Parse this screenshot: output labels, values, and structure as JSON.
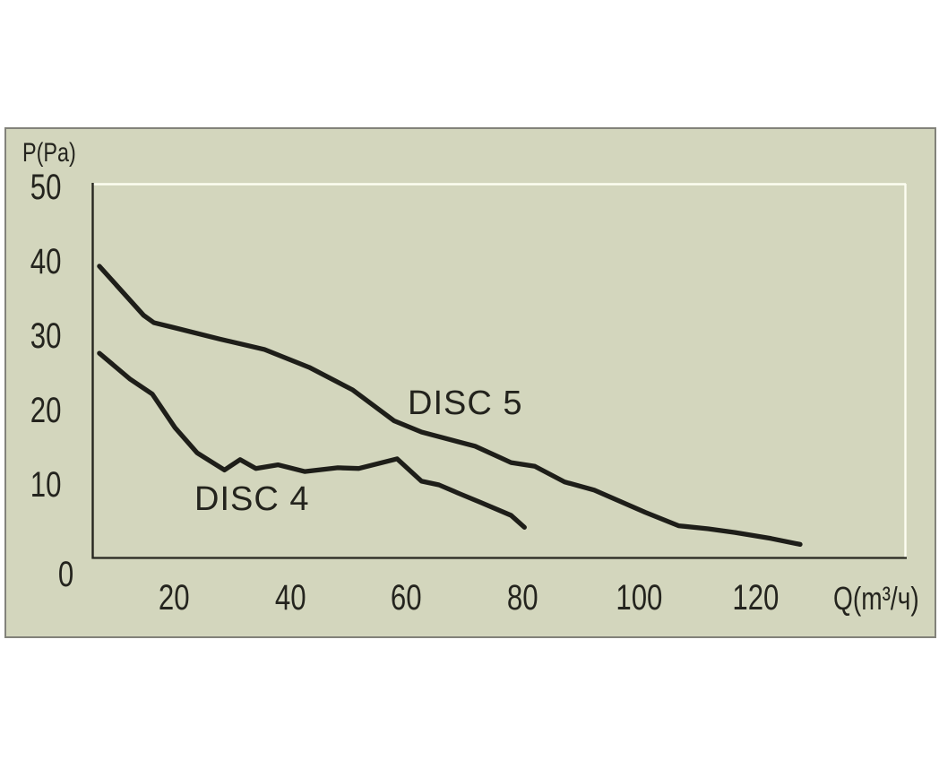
{
  "panel": {
    "background_color": "#d3d6bd",
    "border_color": "#82827a"
  },
  "chart_data": {
    "type": "line",
    "title": "",
    "ylabel": "P(Pa)",
    "xlabel": "Q(m³/ч)",
    "x_ticks": [
      20,
      40,
      60,
      80,
      100,
      120
    ],
    "y_ticks": [
      50,
      40,
      30,
      20,
      10,
      0
    ],
    "xlim": [
      6,
      146
    ],
    "ylim": [
      0,
      50
    ],
    "grid": false,
    "legend_position": "inline-labels-on-plot",
    "axis_color": "#26261f",
    "plot_border_highlight": "#fcfdf1",
    "curve_color": "#1e1e19",
    "text_color": "#24241e",
    "series": [
      {
        "name": "DISC 5",
        "points": [
          [
            7.2,
            39.4
          ],
          [
            14.8,
            32.8
          ],
          [
            16.6,
            31.8
          ],
          [
            19.7,
            31.2
          ],
          [
            27.9,
            29.6
          ],
          [
            35.6,
            28.2
          ],
          [
            43.3,
            25.8
          ],
          [
            50.7,
            22.8
          ],
          [
            57.9,
            18.6
          ],
          [
            62.6,
            17.1
          ],
          [
            71.8,
            15.2
          ],
          [
            78.0,
            13.0
          ],
          [
            82.1,
            12.5
          ],
          [
            87.2,
            10.4
          ],
          [
            92.3,
            9.3
          ],
          [
            101.1,
            6.3
          ],
          [
            106.8,
            4.5
          ],
          [
            111.9,
            4.1
          ],
          [
            116.5,
            3.6
          ],
          [
            122.7,
            2.8
          ],
          [
            127.7,
            2.0
          ]
        ]
      },
      {
        "name": "DISC 4",
        "points": [
          [
            7.2,
            27.7
          ],
          [
            12.5,
            24.2
          ],
          [
            16.3,
            22.2
          ],
          [
            20.2,
            17.7
          ],
          [
            24.0,
            14.3
          ],
          [
            28.7,
            12.0
          ],
          [
            31.4,
            13.4
          ],
          [
            34.1,
            12.2
          ],
          [
            37.9,
            12.7
          ],
          [
            42.5,
            11.8
          ],
          [
            48.2,
            12.3
          ],
          [
            51.8,
            12.2
          ],
          [
            58.4,
            13.5
          ],
          [
            62.6,
            10.5
          ],
          [
            65.6,
            10.0
          ],
          [
            69.2,
            8.8
          ],
          [
            72.9,
            7.6
          ],
          [
            78.0,
            5.9
          ],
          [
            80.3,
            4.3
          ]
        ]
      }
    ]
  }
}
